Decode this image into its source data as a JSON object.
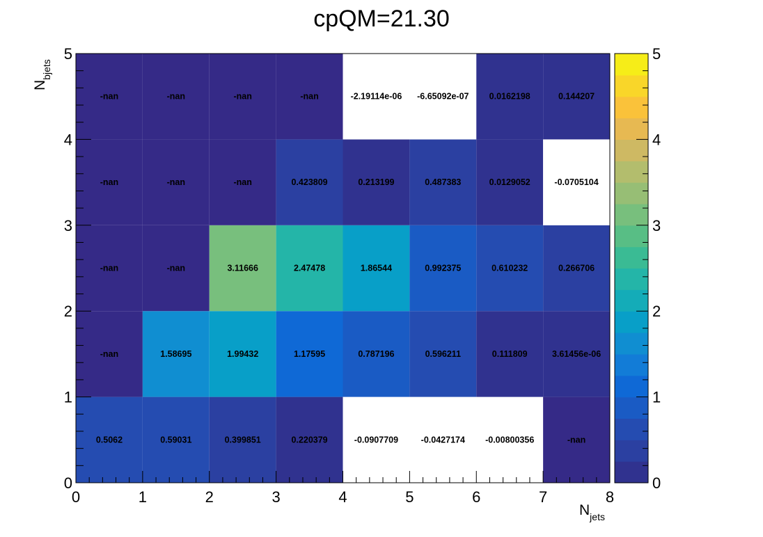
{
  "chart_data": {
    "type": "heatmap",
    "title": "cpQM=21.30",
    "xlabel": {
      "main": "N",
      "sub": "jets"
    },
    "ylabel": {
      "main": "N",
      "sub": "bjets"
    },
    "xlim": [
      0,
      8
    ],
    "ylim": [
      0,
      5
    ],
    "x_ticks": [
      "0",
      "1",
      "2",
      "3",
      "4",
      "5",
      "6",
      "7",
      "8"
    ],
    "y_ticks": [
      "0",
      "1",
      "2",
      "3",
      "4",
      "5"
    ],
    "z_range": [
      0,
      5
    ],
    "z_ticks": [
      "0",
      "1",
      "2",
      "3",
      "4",
      "5"
    ],
    "palette": [
      "#352a87",
      "#2e3694",
      "#2b40a2",
      "#2749ae",
      "#1f55ba",
      "#1660cc",
      "#0e6bd8",
      "#127ad8",
      "#1487d4",
      "#0c96cd",
      "#06a2c6",
      "#13acb9",
      "#20b4ad",
      "#2cb89e",
      "#41bc8e",
      "#59be85",
      "#72bf7e",
      "#8abf79",
      "#a2be72",
      "#b6bd6c",
      "#cbb964",
      "#deb95b",
      "#f2ba46",
      "#fcc536",
      "#f9d52a",
      "#f5e51e",
      "#f9fb0e"
    ],
    "palette_levels": 20,
    "empty_color": "#ffffff",
    "rows": [
      {
        "y": 0,
        "cells": [
          {
            "x": 0,
            "value": 0.5062,
            "label": "0.5062"
          },
          {
            "x": 1,
            "value": 0.59031,
            "label": "0.59031"
          },
          {
            "x": 2,
            "value": 0.399851,
            "label": "0.399851"
          },
          {
            "x": 3,
            "value": 0.220379,
            "label": "0.220379"
          },
          {
            "x": 4,
            "value": -0.0907709,
            "label": "-0.0907709"
          },
          {
            "x": 5,
            "value": -0.0427174,
            "label": "-0.0427174"
          },
          {
            "x": 6,
            "value": -0.00800356,
            "label": "-0.00800356"
          },
          {
            "x": 7,
            "value": null,
            "label": "-nan"
          }
        ]
      },
      {
        "y": 1,
        "cells": [
          {
            "x": 0,
            "value": null,
            "label": "-nan"
          },
          {
            "x": 1,
            "value": 1.58695,
            "label": "1.58695"
          },
          {
            "x": 2,
            "value": 1.99432,
            "label": "1.99432"
          },
          {
            "x": 3,
            "value": 1.17595,
            "label": "1.17595"
          },
          {
            "x": 4,
            "value": 0.787196,
            "label": "0.787196"
          },
          {
            "x": 5,
            "value": 0.596211,
            "label": "0.596211"
          },
          {
            "x": 6,
            "value": 0.111809,
            "label": "0.111809"
          },
          {
            "x": 7,
            "value": 3.61456e-06,
            "label": "3.61456e-06"
          }
        ]
      },
      {
        "y": 2,
        "cells": [
          {
            "x": 0,
            "value": null,
            "label": "-nan"
          },
          {
            "x": 1,
            "value": null,
            "label": "-nan"
          },
          {
            "x": 2,
            "value": 3.11666,
            "label": "3.11666"
          },
          {
            "x": 3,
            "value": 2.47478,
            "label": "2.47478"
          },
          {
            "x": 4,
            "value": 1.86544,
            "label": "1.86544"
          },
          {
            "x": 5,
            "value": 0.992375,
            "label": "0.992375"
          },
          {
            "x": 6,
            "value": 0.610232,
            "label": "0.610232"
          },
          {
            "x": 7,
            "value": 0.266706,
            "label": "0.266706"
          }
        ]
      },
      {
        "y": 3,
        "cells": [
          {
            "x": 0,
            "value": null,
            "label": "-nan"
          },
          {
            "x": 1,
            "value": null,
            "label": "-nan"
          },
          {
            "x": 2,
            "value": null,
            "label": "-nan"
          },
          {
            "x": 3,
            "value": 0.423809,
            "label": "0.423809"
          },
          {
            "x": 4,
            "value": 0.213199,
            "label": "0.213199"
          },
          {
            "x": 5,
            "value": 0.487383,
            "label": "0.487383"
          },
          {
            "x": 6,
            "value": 0.0129052,
            "label": "0.0129052"
          },
          {
            "x": 7,
            "value": -0.0705104,
            "label": "-0.0705104"
          }
        ]
      },
      {
        "y": 4,
        "cells": [
          {
            "x": 0,
            "value": null,
            "label": "-nan"
          },
          {
            "x": 1,
            "value": null,
            "label": "-nan"
          },
          {
            "x": 2,
            "value": null,
            "label": "-nan"
          },
          {
            "x": 3,
            "value": null,
            "label": "-nan"
          },
          {
            "x": 4,
            "value": -2.19114e-06,
            "label": "-2.19114e-06"
          },
          {
            "x": 5,
            "value": -6.65092e-07,
            "label": "-6.65092e-07"
          },
          {
            "x": 6,
            "value": 0.0162198,
            "label": "0.0162198"
          },
          {
            "x": 7,
            "value": 0.144207,
            "label": "0.144207"
          }
        ]
      }
    ]
  }
}
